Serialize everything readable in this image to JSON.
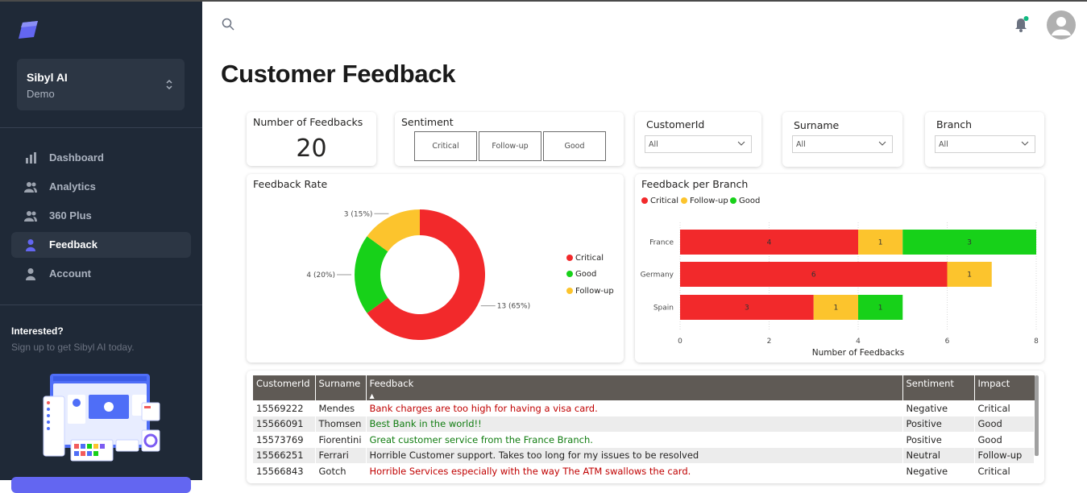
{
  "sidebar": {
    "org_name": "Sibyl AI",
    "org_sub": "Demo",
    "nav": [
      {
        "label": "Dashboard",
        "icon": "bar-chart-icon"
      },
      {
        "label": "Analytics",
        "icon": "users-icon"
      },
      {
        "label": "360 Plus",
        "icon": "users-icon"
      },
      {
        "label": "Feedback",
        "icon": "user-icon",
        "active": true
      },
      {
        "label": "Account",
        "icon": "user-icon"
      }
    ],
    "promo_title": "Interested?",
    "promo_sub": "Sign up to get Sibyl AI today."
  },
  "page": {
    "title": "Customer Feedback"
  },
  "kpi": {
    "label": "Number of Feedbacks",
    "value": "20"
  },
  "filters": {
    "sentiment": {
      "label": "Sentiment",
      "options": [
        "Critical",
        "Follow-up",
        "Good"
      ]
    },
    "customer": {
      "label": "CustomerId",
      "value": "All"
    },
    "surname": {
      "label": "Surname",
      "value": "All"
    },
    "branch": {
      "label": "Branch",
      "value": "All"
    }
  },
  "colors": {
    "critical": "#f2292b",
    "follow_up": "#fcc42d",
    "good": "#17d119",
    "accent": "#6366f1"
  },
  "chart_data": [
    {
      "type": "pie",
      "title": "Feedback Rate",
      "donut": true,
      "slices": [
        {
          "label": "Critical",
          "value": 13,
          "data_label": "13 (65%)"
        },
        {
          "label": "Good",
          "value": 4,
          "data_label": "4 (20%)"
        },
        {
          "label": "Follow-up",
          "value": 3,
          "data_label": "3 (15%)"
        }
      ],
      "legend": [
        "Critical",
        "Good",
        "Follow-up"
      ],
      "legend_position": "right"
    },
    {
      "type": "bar",
      "orientation": "horizontal",
      "stacked": true,
      "title": "Feedback per Branch",
      "categories": [
        "France",
        "Germany",
        "Spain"
      ],
      "series": [
        {
          "name": "Critical",
          "values": [
            4,
            6,
            3
          ]
        },
        {
          "name": "Follow-up",
          "values": [
            1,
            1,
            1
          ]
        },
        {
          "name": "Good",
          "values": [
            3,
            0,
            1
          ]
        }
      ],
      "xlabel": "Number of Feedbacks",
      "xlim": [
        0,
        8
      ],
      "xticks": [
        "0",
        "2",
        "4",
        "6",
        "8"
      ],
      "legend_position": "top-left"
    }
  ],
  "table": {
    "columns": [
      "CustomerId",
      "Surname",
      "Feedback",
      "Sentiment",
      "Impact"
    ],
    "rows": [
      [
        "15569222",
        "Mendes",
        "Bank charges are too high for having a visa card.",
        "Negative",
        "Critical"
      ],
      [
        "15566091",
        "Thomsen",
        "Best Bank in the world!!",
        "Positive",
        "Good"
      ],
      [
        "15573769",
        "Fiorentini",
        "Great customer service from the France Branch.",
        "Positive",
        "Good"
      ],
      [
        "15566251",
        "Ferrari",
        "Horrible Customer support. Takes too long for my issues to be resolved",
        "Neutral",
        "Follow-up"
      ],
      [
        "15566843",
        "Gotch",
        "Horrible Services especially with the way The ATM swallows the card.",
        "Negative",
        "Critical"
      ]
    ]
  }
}
